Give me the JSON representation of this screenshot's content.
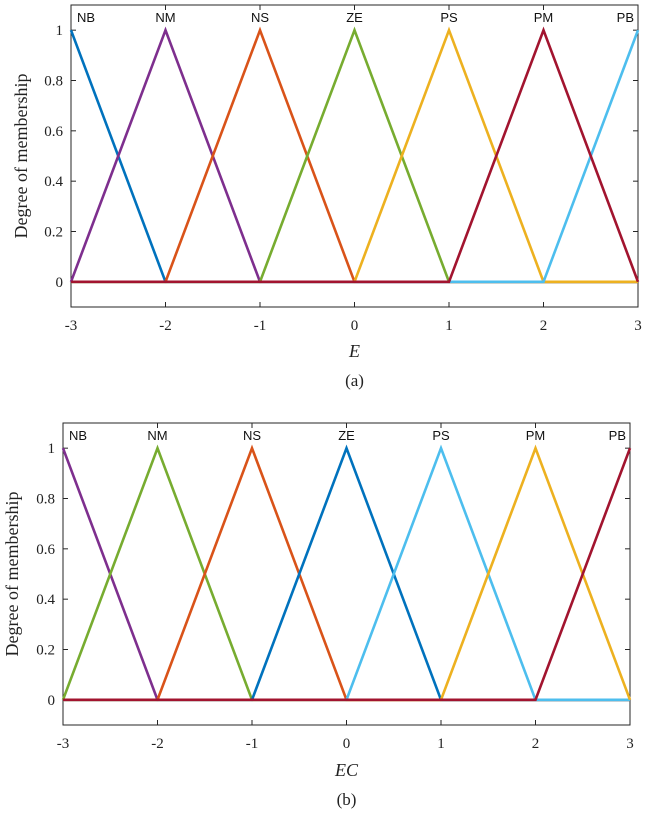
{
  "chart_data": [
    {
      "type": "line",
      "caption": "(a)",
      "xlabel": "E",
      "ylabel": "Degree of membership",
      "xlim": [
        -3,
        3
      ],
      "ylim": [
        -0.1,
        1.1
      ],
      "xticks": [
        "-3",
        "-2",
        "-1",
        "0",
        "1",
        "2",
        "3"
      ],
      "yticks": [
        "0",
        "0.2",
        "0.4",
        "0.6",
        "0.8",
        "1"
      ],
      "grid": false,
      "series": [
        {
          "name": "NB",
          "color": "#0072BD",
          "points": [
            [
              -3,
              1
            ],
            [
              -2,
              0
            ],
            [
              3,
              0
            ]
          ]
        },
        {
          "name": "NM",
          "color": "#7E2F8E",
          "points": [
            [
              -3,
              0
            ],
            [
              -2,
              1
            ],
            [
              -1,
              0
            ],
            [
              3,
              0
            ]
          ]
        },
        {
          "name": "NS",
          "color": "#D95319",
          "points": [
            [
              -3,
              0
            ],
            [
              -2,
              0
            ],
            [
              -1,
              1
            ],
            [
              0,
              0
            ],
            [
              3,
              0
            ]
          ]
        },
        {
          "name": "ZE",
          "color": "#77AC30",
          "points": [
            [
              -3,
              0
            ],
            [
              -1,
              0
            ],
            [
              0,
              1
            ],
            [
              1,
              0
            ],
            [
              3,
              0
            ]
          ]
        },
        {
          "name": "PS",
          "color": "#EDB120",
          "points": [
            [
              -3,
              0
            ],
            [
              0,
              0
            ],
            [
              1,
              1
            ],
            [
              2,
              0
            ],
            [
              3,
              0
            ]
          ]
        },
        {
          "name": "PB",
          "color": "#4DBEEE",
          "points": [
            [
              -3,
              0
            ],
            [
              2,
              0
            ],
            [
              3,
              1
            ]
          ]
        },
        {
          "name": "PM",
          "color": "#A2142F",
          "points": [
            [
              -3,
              0
            ],
            [
              1,
              0
            ],
            [
              2,
              1
            ],
            [
              3,
              0
            ]
          ]
        }
      ]
    },
    {
      "type": "line",
      "caption": "(b)",
      "xlabel": "EC",
      "ylabel": "Degree of membership",
      "xlim": [
        -3,
        3
      ],
      "ylim": [
        -0.1,
        1.1
      ],
      "xticks": [
        "-3",
        "-2",
        "-1",
        "0",
        "1",
        "2",
        "3"
      ],
      "yticks": [
        "0",
        "0.2",
        "0.4",
        "0.6",
        "0.8",
        "1"
      ],
      "grid": false,
      "series": [
        {
          "name": "NB",
          "color": "#7E2F8E",
          "points": [
            [
              -3,
              1
            ],
            [
              -2,
              0
            ],
            [
              3,
              0
            ]
          ]
        },
        {
          "name": "NM",
          "color": "#77AC30",
          "points": [
            [
              -3,
              0
            ],
            [
              -2,
              1
            ],
            [
              -1,
              0
            ],
            [
              3,
              0
            ]
          ]
        },
        {
          "name": "NS",
          "color": "#D95319",
          "points": [
            [
              -3,
              0
            ],
            [
              -2,
              0
            ],
            [
              -1,
              1
            ],
            [
              0,
              0
            ],
            [
              3,
              0
            ]
          ]
        },
        {
          "name": "ZE",
          "color": "#0072BD",
          "points": [
            [
              -3,
              0
            ],
            [
              -1,
              0
            ],
            [
              0,
              1
            ],
            [
              1,
              0
            ],
            [
              3,
              0
            ]
          ]
        },
        {
          "name": "PS",
          "color": "#4DBEEE",
          "points": [
            [
              -3,
              0
            ],
            [
              0,
              0
            ],
            [
              1,
              1
            ],
            [
              2,
              0
            ],
            [
              3,
              0
            ]
          ]
        },
        {
          "name": "PM",
          "color": "#EDB120",
          "points": [
            [
              -3,
              0
            ],
            [
              1,
              0
            ],
            [
              2,
              1
            ],
            [
              3,
              0
            ]
          ]
        },
        {
          "name": "PB",
          "color": "#A2142F",
          "points": [
            [
              -3,
              0
            ],
            [
              2,
              0
            ],
            [
              3,
              1
            ]
          ]
        }
      ]
    }
  ]
}
